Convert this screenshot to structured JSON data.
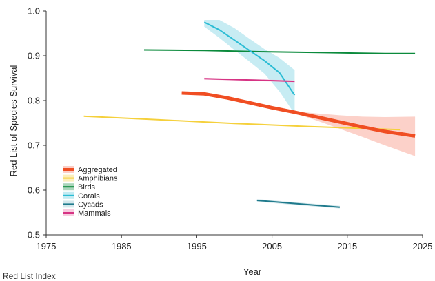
{
  "chart_data": {
    "type": "line",
    "title": "",
    "xlabel": "Year",
    "ylabel": "Red List of Species Survival",
    "xlim": [
      1975,
      2025
    ],
    "ylim": [
      0.5,
      1.0
    ],
    "xticks": [
      "1975",
      "1985",
      "1995",
      "2005",
      "2015",
      "2025"
    ],
    "yticks": [
      "0.5",
      "0.6",
      "0.7",
      "0.8",
      "0.9",
      "1.0"
    ],
    "grid": false,
    "legend_position": "lower-left",
    "series": [
      {
        "name": "Aggregated",
        "color": "#f04e23",
        "band_color": "#fbc9c0",
        "emphasis": true,
        "x": [
          1993,
          1996,
          1999,
          2002,
          2005,
          2008,
          2011,
          2014,
          2017,
          2020,
          2024
        ],
        "y": [
          0.817,
          0.815,
          0.806,
          0.795,
          0.784,
          0.774,
          0.763,
          0.752,
          0.741,
          0.731,
          0.721
        ],
        "lower": [
          0.815,
          0.813,
          0.804,
          0.793,
          0.782,
          0.772,
          0.755,
          0.737,
          0.719,
          0.7,
          0.676
        ],
        "upper": [
          0.819,
          0.817,
          0.808,
          0.797,
          0.786,
          0.776,
          0.771,
          0.767,
          0.764,
          0.763,
          0.764
        ]
      },
      {
        "name": "Amphibians",
        "color": "#f5d03b",
        "x": [
          1980,
          1990,
          2000,
          2010,
          2022
        ],
        "y": [
          0.765,
          0.757,
          0.749,
          0.742,
          0.735
        ]
      },
      {
        "name": "Birds",
        "color": "#0b8a3c",
        "x": [
          1988,
          1996,
          2004,
          2012,
          2020,
          2024
        ],
        "y": [
          0.913,
          0.912,
          0.909,
          0.907,
          0.905,
          0.905
        ]
      },
      {
        "name": "Corals",
        "color": "#2bbcd4",
        "band_color": "#bde9f1",
        "x": [
          1996,
          1998,
          2000,
          2002,
          2004,
          2006,
          2008
        ],
        "y": [
          0.975,
          0.958,
          0.935,
          0.912,
          0.889,
          0.862,
          0.812
        ],
        "lower": [
          0.965,
          0.94,
          0.913,
          0.887,
          0.86,
          0.82,
          0.77
        ],
        "upper": [
          0.98,
          0.98,
          0.962,
          0.938,
          0.915,
          0.895,
          0.868
        ]
      },
      {
        "name": "Cycads",
        "color": "#1f7a8c",
        "band_color": "#cfe5ea",
        "x": [
          2003,
          2008,
          2014
        ],
        "y": [
          0.577,
          0.57,
          0.562
        ],
        "lower": [
          0.574,
          0.567,
          0.559
        ],
        "upper": [
          0.58,
          0.573,
          0.565
        ]
      },
      {
        "name": "Mammals",
        "color": "#d63384",
        "band_color": "#f6c6dc",
        "x": [
          1996,
          2002,
          2008
        ],
        "y": [
          0.849,
          0.846,
          0.843
        ],
        "lower": [
          0.847,
          0.844,
          0.841
        ],
        "upper": [
          0.851,
          0.848,
          0.845
        ]
      }
    ],
    "footer_text": "Red List Index"
  }
}
